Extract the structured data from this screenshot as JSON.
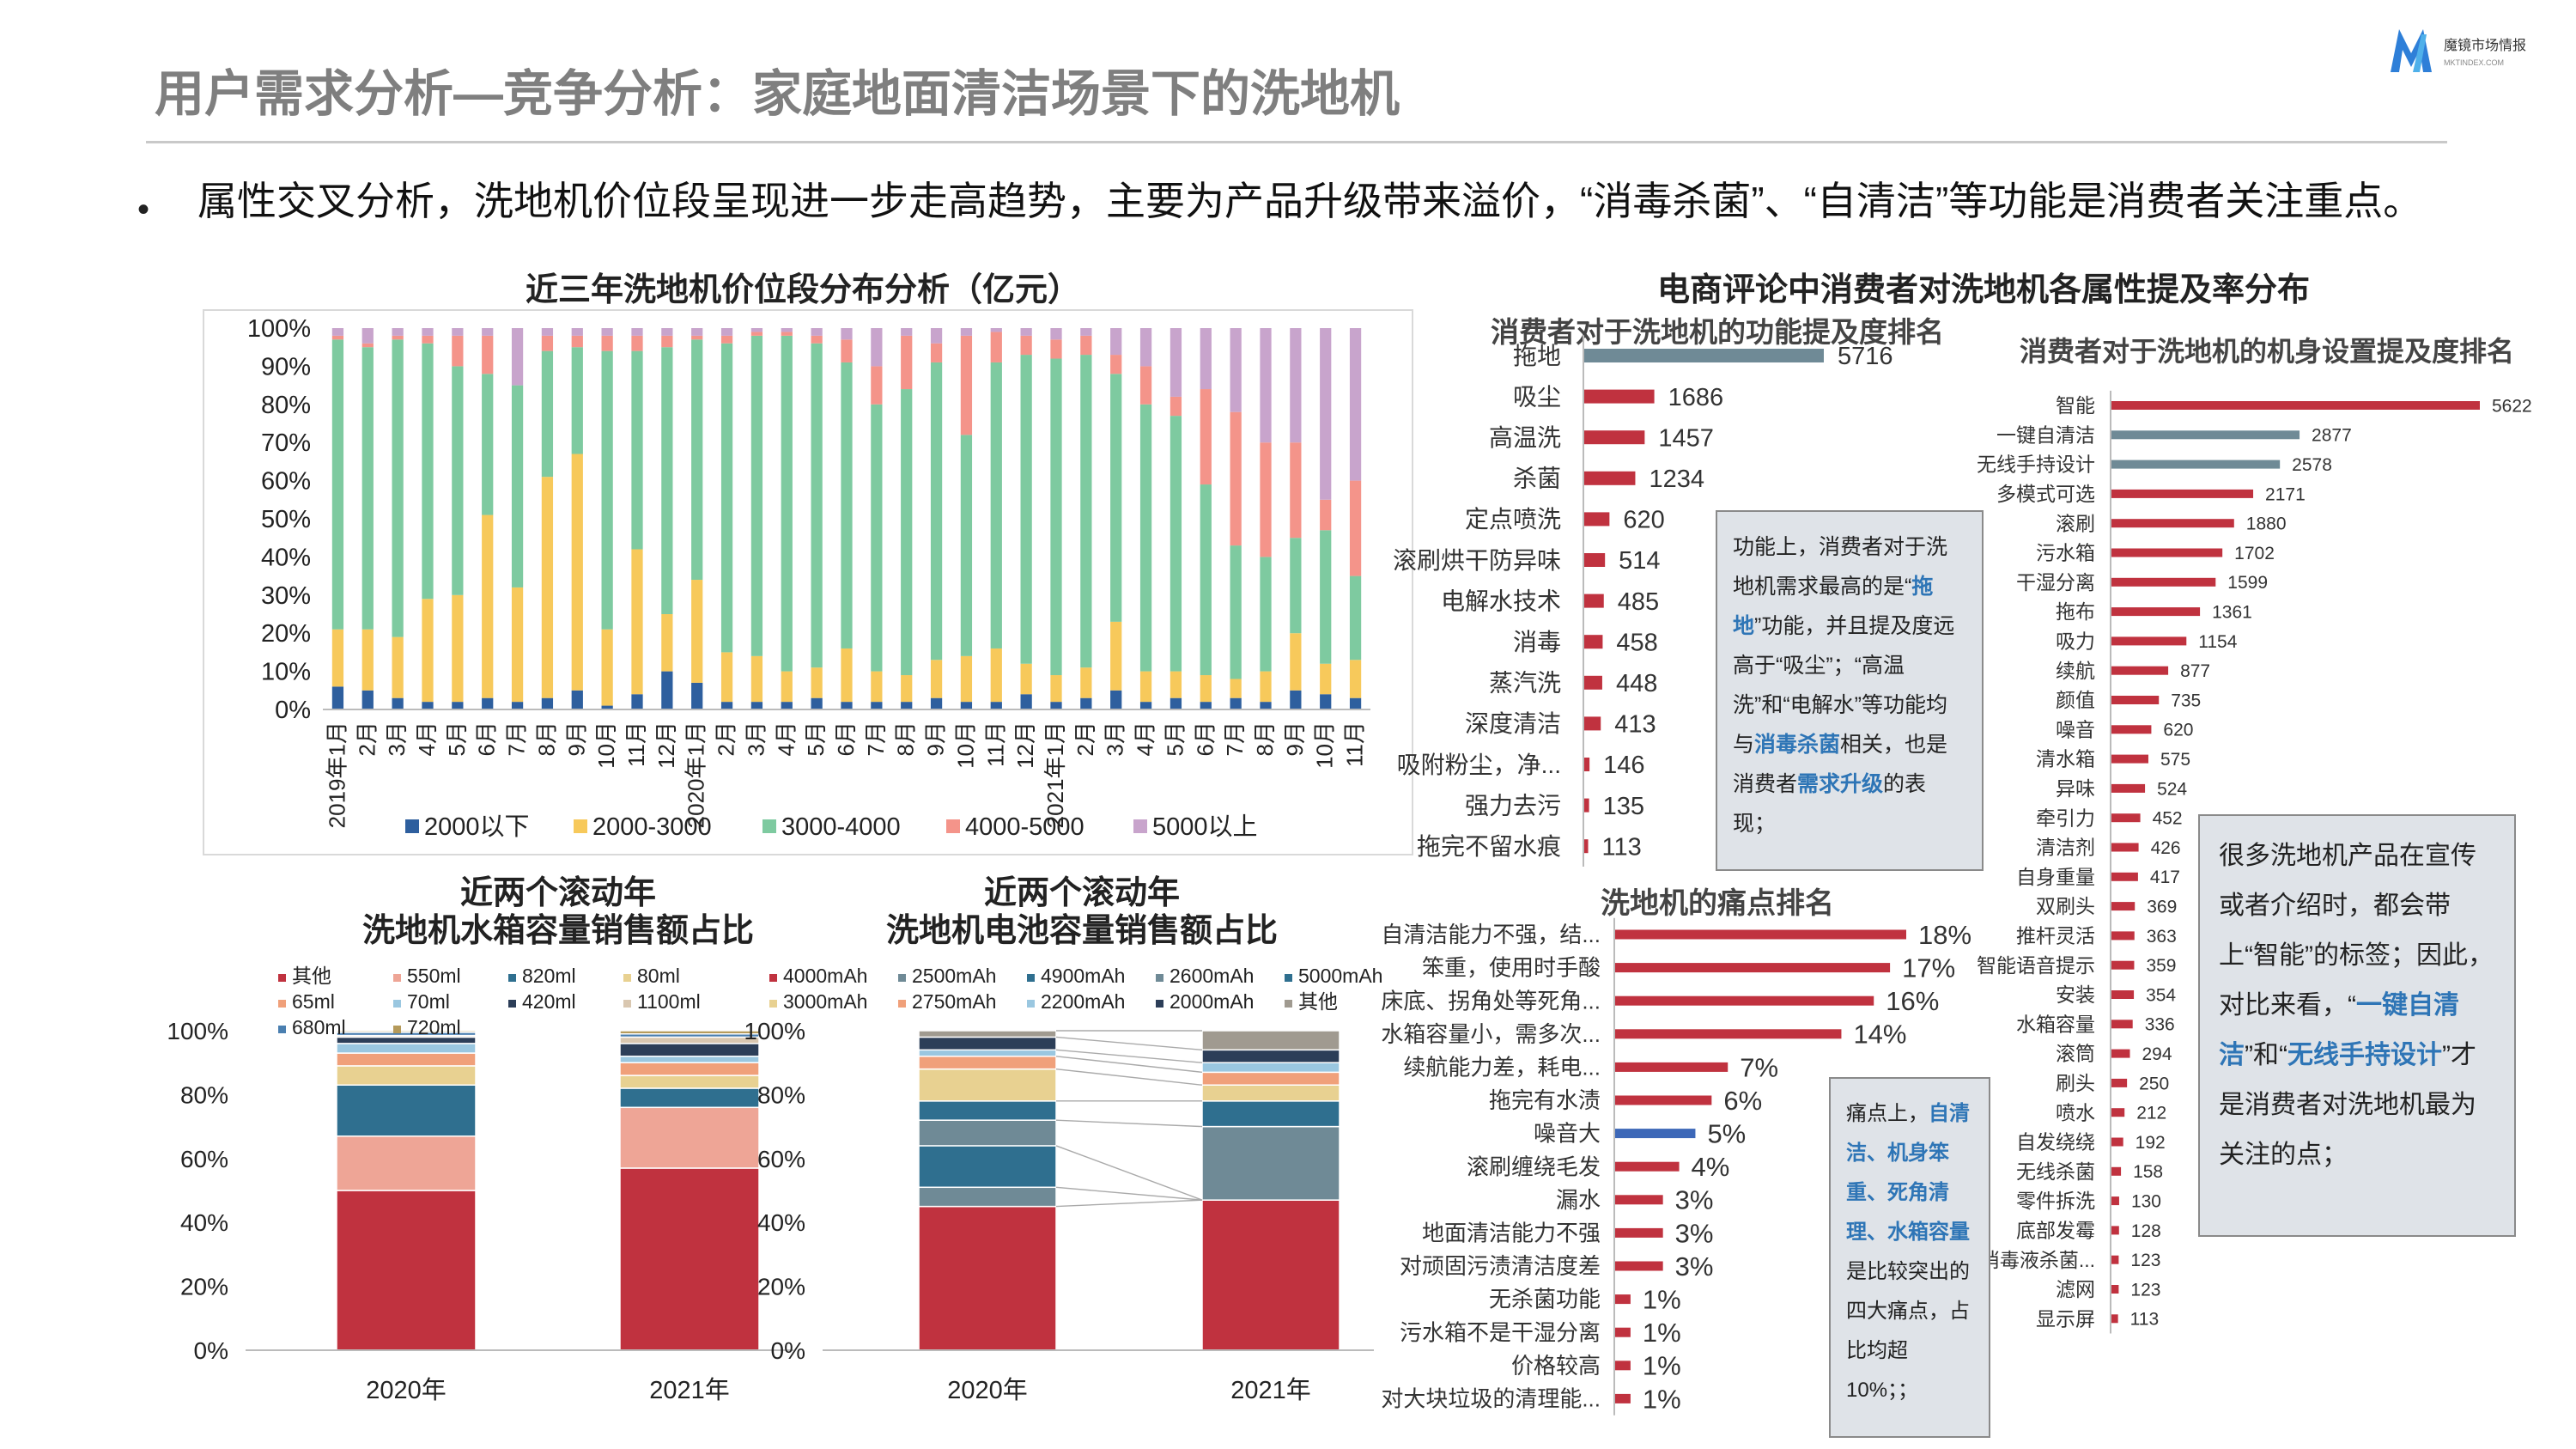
{
  "page": {
    "title": "用户需求分析—竞争分析：家庭地面清洁场景下的洗地机",
    "bullet": "属性交叉分析，洗地机价位段呈现进一步走高趋势，主要为产品升级带来溢价，“消毒杀菌”、“自清洁”等功能是消费者关注重点。",
    "logo_text": "魔镜市场情报",
    "logo_sub": "MKTINDEX.COM",
    "brand_color": "#2e7fd8"
  },
  "colors": {
    "blue": "#2e5f9e",
    "yellow": "#f7c95b",
    "green": "#7ecaa0",
    "salmon": "#f4948a",
    "purple": "#c8a4cc",
    "red": "#c0323f",
    "gray": "#6f8a96",
    "highlight": "#2e75b6"
  },
  "chart_data": [
    {
      "id": "price",
      "type": "bar",
      "stacked": true,
      "percent": true,
      "title": "近三年洗地机价位段分布分析（亿元）",
      "ylim": [
        0,
        100
      ],
      "yticks": [
        "0%",
        "10%",
        "20%",
        "30%",
        "40%",
        "50%",
        "60%",
        "70%",
        "80%",
        "90%",
        "100%"
      ],
      "legend": [
        "2000以下",
        "2000-3000",
        "3000-4000",
        "4000-5000",
        "5000以上"
      ],
      "legend_position": "bottom",
      "categories": [
        "2019年1月",
        "2月",
        "3月",
        "4月",
        "5月",
        "6月",
        "7月",
        "8月",
        "9月",
        "10月",
        "11月",
        "12月",
        "2020年1月",
        "2月",
        "3月",
        "4月",
        "5月",
        "6月",
        "7月",
        "8月",
        "9月",
        "10月",
        "11月",
        "12月",
        "2021年1月",
        "2月",
        "3月",
        "4月",
        "5月",
        "6月",
        "7月",
        "8月",
        "9月",
        "10月",
        "11月"
      ],
      "series": [
        {
          "name": "2000以下",
          "values": [
            6,
            5,
            3,
            2,
            2,
            3,
            2,
            3,
            5,
            1,
            4,
            10,
            7,
            2,
            2,
            2,
            3,
            2,
            2,
            2,
            3,
            2,
            2,
            4,
            2,
            3,
            5,
            2,
            3,
            2,
            3,
            2,
            5,
            4,
            3
          ]
        },
        {
          "name": "2000-3000",
          "values": [
            15,
            16,
            16,
            27,
            28,
            48,
            30,
            58,
            62,
            20,
            38,
            15,
            27,
            13,
            12,
            8,
            8,
            14,
            8,
            7,
            10,
            12,
            14,
            8,
            7,
            8,
            18,
            8,
            7,
            7,
            5,
            8,
            15,
            8,
            10
          ]
        },
        {
          "name": "3000-4000",
          "values": [
            76,
            74,
            78,
            67,
            60,
            37,
            53,
            33,
            28,
            73,
            52,
            70,
            63,
            81,
            84,
            88,
            85,
            75,
            70,
            75,
            78,
            58,
            75,
            81,
            83,
            82,
            65,
            70,
            67,
            50,
            35,
            30,
            25,
            35,
            22
          ]
        },
        {
          "name": "4000-5000",
          "values": [
            1,
            1,
            1,
            2,
            8,
            10,
            0,
            4,
            3,
            4,
            4,
            3,
            1,
            2,
            1,
            1,
            2,
            6,
            10,
            14,
            5,
            26,
            8,
            5,
            5,
            5,
            5,
            10,
            5,
            25,
            35,
            30,
            25,
            8,
            25
          ]
        },
        {
          "name": "5000以上",
          "values": [
            2,
            4,
            2,
            2,
            2,
            2,
            15,
            2,
            2,
            2,
            2,
            2,
            2,
            2,
            1,
            1,
            2,
            3,
            10,
            2,
            4,
            2,
            1,
            2,
            3,
            2,
            7,
            10,
            18,
            16,
            22,
            30,
            30,
            45,
            40
          ]
        }
      ]
    },
    {
      "id": "tank",
      "type": "bar",
      "stacked": true,
      "percent": true,
      "title": "近两个滚动年\n洗地机水箱容量销售额占比",
      "ylim": [
        0,
        100
      ],
      "yticks": [
        "0%",
        "20%",
        "40%",
        "60%",
        "80%",
        "100%"
      ],
      "categories": [
        "2020年",
        "2021年"
      ],
      "series": [
        {
          "name": "其他",
          "values": [
            50,
            57
          ],
          "color": "#c0323f"
        },
        {
          "name": "550ml",
          "values": [
            17,
            19
          ],
          "color": "#eea596"
        },
        {
          "name": "820ml",
          "values": [
            16,
            6
          ],
          "color": "#2f6f8f"
        },
        {
          "name": "80ml",
          "values": [
            6,
            4
          ],
          "color": "#e8d191"
        },
        {
          "name": "65ml",
          "values": [
            4,
            4
          ],
          "color": "#f0a07a"
        },
        {
          "name": "70ml",
          "values": [
            3,
            2
          ],
          "color": "#9ac7e0"
        },
        {
          "name": "420ml",
          "values": [
            2,
            4
          ],
          "color": "#2c3e58"
        },
        {
          "name": "1100ml",
          "values": [
            0.5,
            2
          ],
          "color": "#d9c7b0"
        },
        {
          "name": "680ml",
          "values": [
            1,
            1
          ],
          "color": "#4a7fb0"
        },
        {
          "name": "720ml",
          "values": [
            0.5,
            1
          ],
          "color": "#b59a5a"
        }
      ]
    },
    {
      "id": "battery",
      "type": "bar",
      "stacked": true,
      "percent": true,
      "title": "近两个滚动年\n洗地机电池容量销售额占比",
      "ylim": [
        0,
        100
      ],
      "yticks": [
        "0%",
        "20%",
        "40%",
        "60%",
        "80%",
        "100%"
      ],
      "categories": [
        "2020年",
        "2021年"
      ],
      "series": [
        {
          "name": "4000mAh",
          "values": [
            45,
            47
          ],
          "color": "#c0323f"
        },
        {
          "name": "2500mAh",
          "values": [
            6,
            0
          ],
          "color": "#6f8a96"
        },
        {
          "name": "4900mAh",
          "values": [
            13,
            0
          ],
          "color": "#2f6f8f"
        },
        {
          "name": "2600mAh",
          "values": [
            8,
            23
          ],
          "color": "#6f8a96"
        },
        {
          "name": "5000mAh",
          "values": [
            6,
            8
          ],
          "color": "#2f6f8f"
        },
        {
          "name": "3000mAh",
          "values": [
            10,
            5
          ],
          "color": "#e8d191"
        },
        {
          "name": "2750mAh",
          "values": [
            4,
            4
          ],
          "color": "#f0a07a"
        },
        {
          "name": "2200mAh",
          "values": [
            2,
            3
          ],
          "color": "#9ac7e0"
        },
        {
          "name": "2000mAh",
          "values": [
            4,
            4
          ],
          "color": "#2c3e58"
        },
        {
          "name": "其他",
          "values": [
            2,
            6
          ],
          "color": "#a09a90"
        }
      ]
    },
    {
      "id": "function",
      "type": "bar",
      "orientation": "horizontal",
      "title": "消费者对于洗地机的功能提及度排名",
      "categories": [
        "拖地",
        "吸尘",
        "高温洗",
        "杀菌",
        "定点喷洗",
        "滚刷烘干防异味",
        "电解水技术",
        "消毒",
        "蒸汽洗",
        "深度清洁",
        "吸附粉尘，净...",
        "强力去污",
        "拖完不留水痕"
      ],
      "values": [
        5716,
        1686,
        1457,
        1234,
        620,
        514,
        485,
        458,
        448,
        413,
        146,
        135,
        113
      ]
    },
    {
      "id": "body",
      "type": "bar",
      "orientation": "horizontal",
      "title": "消费者对于洗地机的机身设置提及度排名",
      "categories": [
        "智能",
        "一键自清洁",
        "无线手持设计",
        "多模式可选",
        "滚刷",
        "污水箱",
        "干湿分离",
        "拖布",
        "吸力",
        "续航",
        "颜值",
        "噪音",
        "清水箱",
        "异味",
        "牵引力",
        "清洁剂",
        "自身重量",
        "双刷头",
        "推杆灵活",
        "智能语音提示",
        "安装",
        "水箱容量",
        "滚筒",
        "刷头",
        "喷水",
        "自发绕绕",
        "无线杀菌",
        "零件拆洗",
        "底部发霉",
        "消毒液杀菌...",
        "滤网",
        "显示屏"
      ],
      "values": [
        5622,
        2877,
        2578,
        2171,
        1880,
        1702,
        1599,
        1361,
        1154,
        877,
        735,
        620,
        575,
        524,
        452,
        426,
        417,
        369,
        363,
        359,
        354,
        336,
        294,
        250,
        212,
        192,
        158,
        130,
        128,
        123,
        123,
        113
      ]
    },
    {
      "id": "pain",
      "type": "bar",
      "orientation": "horizontal",
      "title": "洗地机的痛点排名",
      "categories": [
        "自清洁能力不强，结...",
        "笨重，使用时手酸",
        "床底、拐角处等死角...",
        "水箱容量小，需多次...",
        "续航能力差，耗电...",
        "拖完有水渍",
        "噪音大",
        "滚刷缠绕毛发",
        "漏水",
        "地面清洁能力不强",
        "对顽固污渍清洁度差",
        "无杀菌功能",
        "污水箱不是干湿分离",
        "价格较高",
        "对大块垃圾的清理能..."
      ],
      "values": [
        18,
        17,
        16,
        14,
        7,
        6,
        5,
        4,
        3,
        3,
        3,
        1,
        1,
        1,
        1
      ],
      "labels": [
        "18%",
        "17%",
        "16%",
        "14%",
        "7%",
        "6%",
        "5%",
        "4%",
        "3%",
        "3%",
        "3%",
        "1%",
        "1%",
        "1%",
        "1%"
      ]
    }
  ],
  "section": {
    "ecommerce_title": "电商评论中消费者对洗地机各属性提及率分布"
  },
  "notes": {
    "function_note": [
      {
        "t": "功能上，消费者对于洗地机需求最高的是“"
      },
      {
        "t": "拖地",
        "hl": true
      },
      {
        "t": "”功能，并且提及度远高于“吸尘”；“高温洗”和“电解水”等功能均与"
      },
      {
        "t": "消毒杀菌",
        "hl": true
      },
      {
        "t": "相关，也是消费者"
      },
      {
        "t": "需求升级",
        "hl": true
      },
      {
        "t": "的表现；"
      }
    ],
    "pain_note": [
      {
        "t": "痛点上，"
      },
      {
        "t": "自清洁、机身笨重、死角清理、水箱容量",
        "hl": true
      },
      {
        "t": "是比较突出的四大痛点，占比均超10%；；"
      }
    ],
    "smart_note": [
      {
        "t": "很多洗地机产品在宣传或者介绍时，都会带上“智能”的标签；因此，对比来看，“"
      },
      {
        "t": "一键自清洁",
        "hl": true
      },
      {
        "t": "”和“"
      },
      {
        "t": "无线手持设计",
        "hl": true
      },
      {
        "t": "”才是消费者对洗地机最为关注的点；"
      }
    ]
  }
}
